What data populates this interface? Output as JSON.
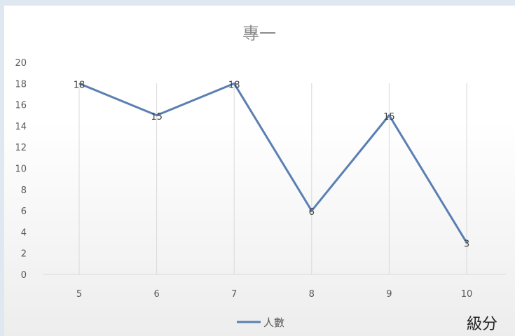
{
  "chart_data": {
    "type": "line",
    "title": "專一",
    "categories": [
      "5",
      "6",
      "7",
      "8",
      "9",
      "10"
    ],
    "series": [
      {
        "name": "人數",
        "values": [
          18,
          15,
          18,
          6,
          15,
          3
        ],
        "color": "#5a7fb2"
      }
    ],
    "data_labels": [
      "18",
      "15",
      "18",
      "6",
      "15",
      "3"
    ],
    "xlabel": "級分",
    "ylabel": "",
    "ylim": [
      0,
      20
    ],
    "yticks": [
      "0",
      "2",
      "4",
      "6",
      "8",
      "10",
      "12",
      "14",
      "16",
      "18",
      "20"
    ],
    "grid": "vertical",
    "legend": "bottom"
  }
}
